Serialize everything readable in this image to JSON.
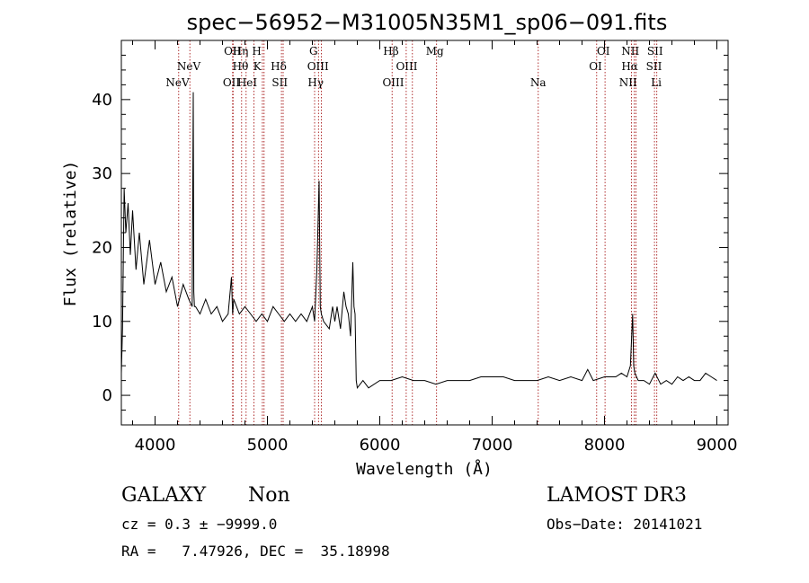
{
  "chart_data": {
    "type": "line",
    "title": "spec−56952−M31005N35M1_sp06−091.fits",
    "xlabel": "Wavelength (Å)",
    "ylabel": "Flux (relative)",
    "xlim": [
      3700,
      9100
    ],
    "ylim": [
      -4,
      48
    ],
    "x_ticks": [
      4000,
      5000,
      6000,
      7000,
      8000,
      9000
    ],
    "y_ticks": [
      0,
      10,
      20,
      30,
      40
    ],
    "x_tick_labels": [
      "4000",
      "5000",
      "6000",
      "7000",
      "8000",
      "9000"
    ],
    "y_tick_labels": [
      "0",
      "10",
      "20",
      "30",
      "40"
    ],
    "series": [
      {
        "name": "flux",
        "x": [
          3700,
          3710,
          3725,
          3740,
          3760,
          3780,
          3800,
          3830,
          3860,
          3900,
          3950,
          4000,
          4050,
          4100,
          4150,
          4200,
          4250,
          4300,
          4330,
          4340,
          4345,
          4350,
          4360,
          4400,
          4450,
          4500,
          4550,
          4600,
          4650,
          4680,
          4690,
          4700,
          4750,
          4800,
          4850,
          4900,
          4950,
          5000,
          5050,
          5100,
          5150,
          5200,
          5250,
          5300,
          5350,
          5400,
          5420,
          5440,
          5460,
          5470,
          5480,
          5500,
          5550,
          5580,
          5600,
          5620,
          5650,
          5680,
          5700,
          5720,
          5740,
          5760,
          5770,
          5780,
          5790,
          5800,
          5850,
          5900,
          6000,
          6100,
          6200,
          6300,
          6400,
          6500,
          6600,
          6700,
          6800,
          6900,
          7000,
          7100,
          7200,
          7300,
          7400,
          7500,
          7600,
          7700,
          7800,
          7850,
          7900,
          8000,
          8100,
          8150,
          8200,
          8230,
          8250,
          8260,
          8270,
          8300,
          8350,
          8400,
          8450,
          8500,
          8550,
          8600,
          8650,
          8700,
          8750,
          8800,
          8850,
          8900,
          8950,
          9000
        ],
        "values": [
          3,
          9,
          28,
          22,
          26,
          19,
          25,
          17,
          22,
          15,
          21,
          15,
          18,
          14,
          16,
          12,
          15,
          13,
          12,
          41,
          14,
          12,
          12,
          11,
          13,
          11,
          12,
          10,
          11,
          16,
          11,
          13,
          11,
          12,
          11,
          10,
          11,
          10,
          12,
          11,
          10,
          11,
          10,
          11,
          10,
          12,
          10,
          17,
          29,
          12,
          11,
          10,
          9,
          12,
          10,
          12,
          9,
          14,
          12,
          11,
          8,
          18,
          12,
          11,
          2,
          1,
          2,
          1,
          2,
          2,
          2.5,
          2,
          2,
          1.5,
          2,
          2,
          2,
          2.5,
          2.5,
          2.5,
          2,
          2,
          2,
          2.5,
          2,
          2.5,
          2,
          3.5,
          2,
          2.5,
          2.5,
          3,
          2.5,
          4,
          11,
          4,
          3,
          2,
          2,
          1.5,
          3,
          1.5,
          2,
          1.5,
          2.5,
          2,
          2.5,
          2,
          2,
          3,
          2.5,
          2
        ]
      }
    ],
    "line_annotations": [
      {
        "label": "NeV",
        "x": 4200,
        "row": 2
      },
      {
        "label": "NeV",
        "x": 4300,
        "row": 1
      },
      {
        "label": "OII",
        "x": 4680,
        "row": 2
      },
      {
        "label": "OII",
        "x": 4690,
        "row": 0
      },
      {
        "label": "Hη",
        "x": 4760,
        "row": 0
      },
      {
        "label": "Hθ",
        "x": 4760,
        "row": 1
      },
      {
        "label": "HeI",
        "x": 4820,
        "row": 2
      },
      {
        "label": "H",
        "x": 4905,
        "row": 0
      },
      {
        "label": "K",
        "x": 4910,
        "row": 1
      },
      {
        "label": "Hδ",
        "x": 5100,
        "row": 1
      },
      {
        "label": "SII",
        "x": 5110,
        "row": 2
      },
      {
        "label": "G",
        "x": 5410,
        "row": 0
      },
      {
        "label": "OIII",
        "x": 5450,
        "row": 1
      },
      {
        "label": "Hγ",
        "x": 5430,
        "row": 2
      },
      {
        "label": "Hβ",
        "x": 6100,
        "row": 0
      },
      {
        "label": "OIII",
        "x": 6240,
        "row": 1
      },
      {
        "label": "OIII",
        "x": 6120,
        "row": 2
      },
      {
        "label": "Mg",
        "x": 6490,
        "row": 0
      },
      {
        "label": "Na",
        "x": 7410,
        "row": 2
      },
      {
        "label": "OI",
        "x": 7990,
        "row": 0
      },
      {
        "label": "OI",
        "x": 7920,
        "row": 1
      },
      {
        "label": "NII",
        "x": 8230,
        "row": 0
      },
      {
        "label": "Hα",
        "x": 8225,
        "row": 1
      },
      {
        "label": "NII",
        "x": 8210,
        "row": 2
      },
      {
        "label": "SII",
        "x": 8450,
        "row": 0
      },
      {
        "label": "SII",
        "x": 8440,
        "row": 1
      },
      {
        "label": "Li",
        "x": 8460,
        "row": 2
      }
    ],
    "annotation_line_x": [
      4210,
      4310,
      4690,
      4695,
      4770,
      4810,
      4880,
      4955,
      4970,
      5125,
      5140,
      5420,
      5455,
      5480,
      6110,
      6235,
      6290,
      6505,
      7410,
      7930,
      8005,
      8240,
      8265,
      8280,
      8445,
      8465
    ]
  },
  "info": {
    "object_class": "GALAXY",
    "subclass": "Non",
    "survey": "LAMOST DR3",
    "cz_line": "cz = 0.3 ± −9999.0",
    "obs_date_line": "Obs−Date: 20141021",
    "coords_line": "RA =   7.47926, DEC =  35.18998"
  },
  "colors": {
    "spectrum": "#000000",
    "annotation_lines": "#b03030",
    "frame": "#000000"
  }
}
